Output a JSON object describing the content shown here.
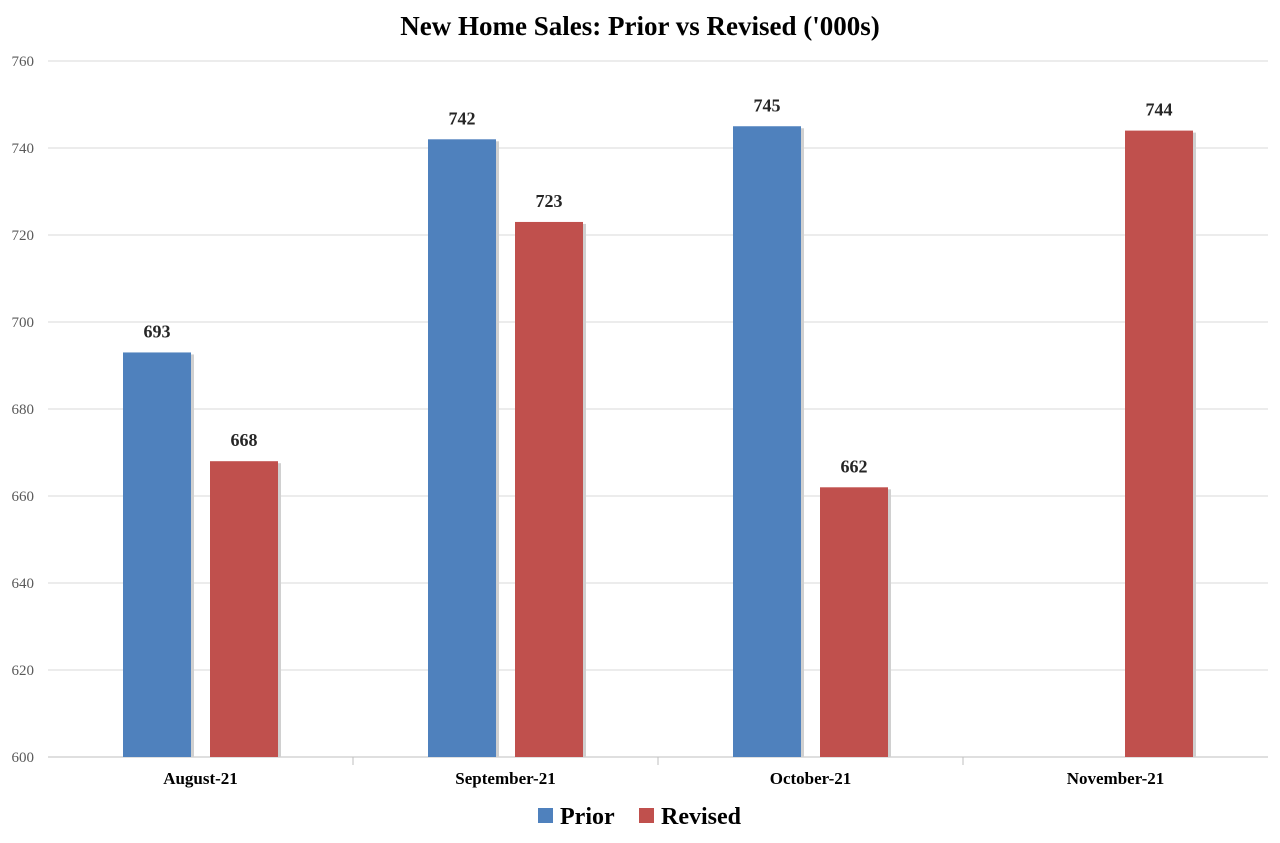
{
  "chart_data": {
    "type": "bar",
    "title": "New Home Sales: Prior vs Revised ('000s)",
    "xlabel": "",
    "ylabel": "",
    "categories": [
      "August-21",
      "September-21",
      "October-21",
      "November-21"
    ],
    "series": [
      {
        "name": "Prior",
        "values": [
          693,
          742,
          745,
          null
        ],
        "color": "#4F81BD"
      },
      {
        "name": "Revised",
        "values": [
          668,
          723,
          662,
          744
        ],
        "color": "#C0504D"
      }
    ],
    "ylim": [
      600,
      760
    ],
    "yticks": [
      600,
      620,
      640,
      660,
      680,
      700,
      720,
      740,
      760
    ],
    "grid": true,
    "legend_position": "bottom"
  }
}
